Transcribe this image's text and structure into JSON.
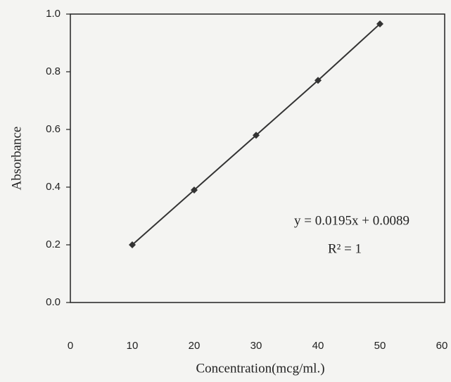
{
  "chart_data": {
    "type": "line",
    "x_label": "Concentration(mcg/ml.)",
    "y_label": "Absorbance",
    "annotations": [
      "y = 0.0195x + 0.0089",
      "R² = 1"
    ],
    "x": [
      10,
      20,
      30,
      40,
      50
    ],
    "series": [
      {
        "color": "#333333",
        "values": [
          0.2,
          0.39,
          0.58,
          0.77,
          0.966
        ]
      }
    ],
    "xlim": [
      0,
      60
    ],
    "xticks": [
      0,
      10,
      20,
      30,
      40,
      50,
      60
    ],
    "ylim": [
      0,
      1
    ],
    "yticks": [
      {
        "value": 0,
        "label": "0.0"
      },
      0.2,
      0.4,
      0.6,
      0.8,
      {
        "value": 1,
        "label": "1.0"
      }
    ],
    "grid": false
  }
}
